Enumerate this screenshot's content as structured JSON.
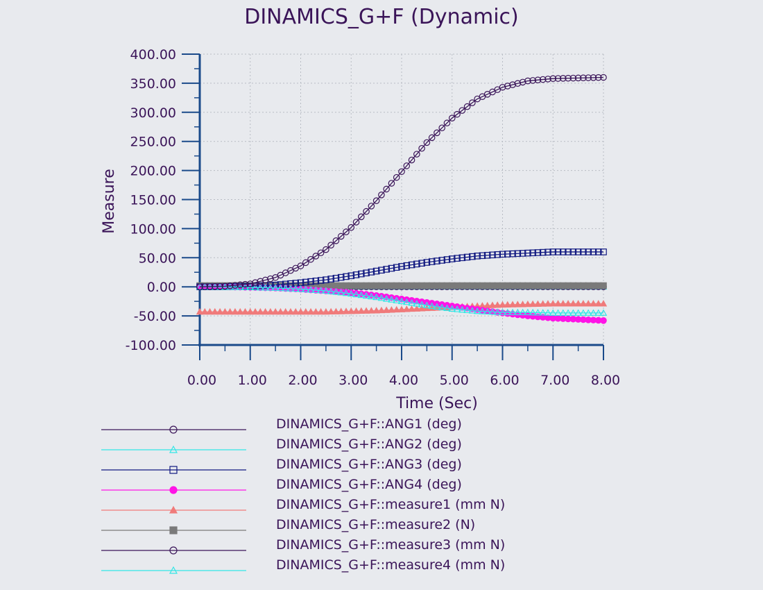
{
  "chart_data": {
    "type": "line",
    "title": "DINAMICS_G+F (Dynamic)",
    "xlabel": "Time (Sec)",
    "ylabel": "Measure",
    "xlim": [
      0,
      8
    ],
    "ylim": [
      -100,
      400
    ],
    "x_ticks": [
      "0.00",
      "1.00",
      "2.00",
      "3.00",
      "4.00",
      "5.00",
      "6.00",
      "7.00",
      "8.00"
    ],
    "y_ticks": [
      "400.00",
      "350.00",
      "300.00",
      "250.00",
      "200.00",
      "150.00",
      "100.00",
      "50.00",
      "0.00",
      "-50.00",
      "-100.00"
    ],
    "grid": true,
    "legend_position": "bottom",
    "x": [
      0,
      0.5,
      1,
      1.5,
      2,
      2.5,
      3,
      3.5,
      4,
      4.5,
      5,
      5.5,
      6,
      6.5,
      7,
      7.5,
      8
    ],
    "series": [
      {
        "name": "DINAMICS_G+F::ANG1 (deg)",
        "color": "#3a1458",
        "marker": "circle-open",
        "values": [
          0,
          1,
          5,
          16,
          36,
          64,
          102,
          148,
          198,
          248,
          290,
          323,
          343,
          354,
          358,
          359,
          360
        ]
      },
      {
        "name": "DINAMICS_G+F::ANG2 (deg)",
        "color": "#33e6e6",
        "marker": "triangle-open",
        "values": [
          0,
          -0.5,
          -1,
          -2,
          -4,
          -7,
          -12,
          -18,
          -25,
          -32,
          -38,
          -42,
          -44,
          -44,
          -45,
          -45,
          -45
        ]
      },
      {
        "name": "DINAMICS_G+F::ANG3 (deg)",
        "color": "#101880",
        "marker": "square-open",
        "values": [
          0,
          0,
          1,
          3,
          7,
          12,
          19,
          27,
          35,
          42,
          48,
          53,
          56,
          58,
          60,
          60,
          60
        ]
      },
      {
        "name": "DINAMICS_G+F::ANG4 (deg)",
        "color": "#ff14e6",
        "marker": "circle-filled",
        "values": [
          0,
          0,
          -1,
          -2,
          -4,
          -7,
          -10,
          -15,
          -21,
          -27,
          -33,
          -39,
          -45,
          -50,
          -54,
          -56,
          -58
        ]
      },
      {
        "name": "DINAMICS_G+F::measure1 (mm N)",
        "color": "#f07a7a",
        "marker": "triangle-filled",
        "values": [
          -43,
          -43,
          -43,
          -43,
          -43,
          -43,
          -42,
          -41,
          -39,
          -37,
          -35,
          -33,
          -31,
          -30,
          -29,
          -29,
          -29
        ]
      },
      {
        "name": "DINAMICS_G+F::measure2 (N)",
        "color": "#7a7a7a",
        "marker": "square-filled",
        "values": [
          2,
          2,
          2,
          2,
          2,
          2,
          2,
          2,
          2,
          2,
          2,
          2,
          2,
          2,
          2,
          2,
          2
        ]
      },
      {
        "name": "DINAMICS_G+F::measure3 (mm N)",
        "color": "#3a1458",
        "marker": "circle-open",
        "values": [
          0,
          0,
          0,
          0,
          0,
          0,
          0,
          0,
          0,
          0,
          0,
          0,
          0,
          0,
          0,
          0,
          0
        ]
      },
      {
        "name": "DINAMICS_G+F::measure4 (mm N)",
        "color": "#33e6e6",
        "marker": "triangle-open",
        "values": [
          0,
          0,
          0,
          0,
          0,
          0,
          0,
          0,
          0,
          0,
          0,
          0,
          0,
          0,
          0,
          0,
          0
        ]
      }
    ]
  }
}
